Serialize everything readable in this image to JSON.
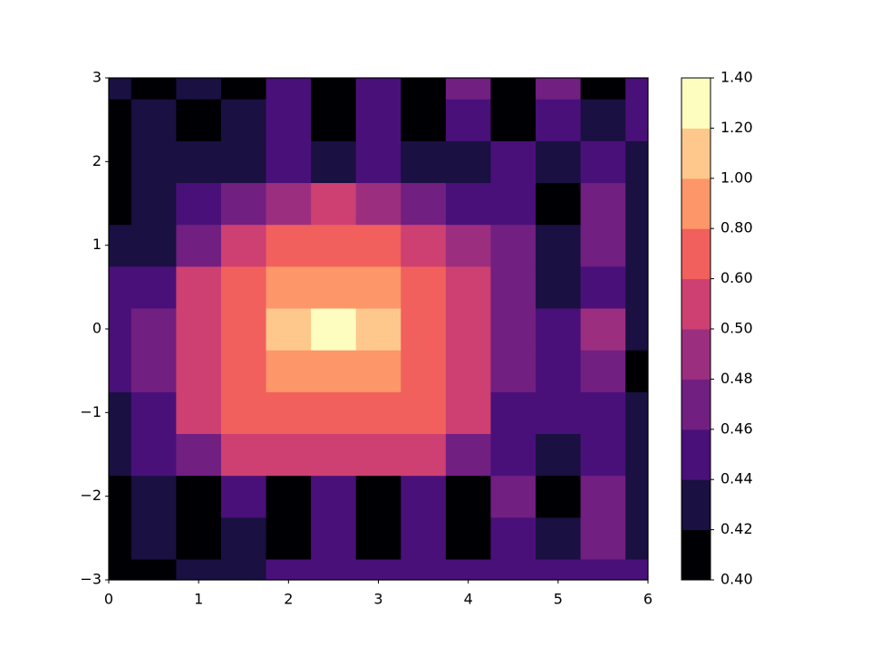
{
  "chart_data": {
    "type": "contourf",
    "x": [
      0,
      0.5,
      1,
      1.5,
      2,
      2.5,
      3,
      3.5,
      4,
      4.5,
      5,
      5.5,
      6
    ],
    "y": [
      -3,
      -2.5,
      -2,
      -1.5,
      -1,
      -0.5,
      0,
      0.5,
      1,
      1.5,
      2,
      2.5,
      3
    ],
    "z": [
      [
        0.41,
        0.41,
        0.43,
        0.42,
        0.44,
        0.44,
        0.45,
        0.44,
        0.45,
        0.44,
        0.45,
        0.45,
        0.45
      ],
      [
        0.41,
        0.43,
        0.41,
        0.43,
        0.41,
        0.44,
        0.41,
        0.44,
        0.41,
        0.45,
        0.43,
        0.46,
        0.43
      ],
      [
        0.41,
        0.43,
        0.41,
        0.44,
        0.41,
        0.45,
        0.41,
        0.45,
        0.41,
        0.46,
        0.41,
        0.47,
        0.43
      ],
      [
        0.42,
        0.44,
        0.46,
        0.5,
        0.55,
        0.58,
        0.55,
        0.5,
        0.47,
        0.45,
        0.43,
        0.45,
        0.43
      ],
      [
        0.43,
        0.45,
        0.5,
        0.62,
        0.7,
        0.72,
        0.7,
        0.62,
        0.52,
        0.45,
        0.44,
        0.45,
        0.43
      ],
      [
        0.44,
        0.46,
        0.55,
        0.68,
        0.9,
        0.95,
        0.9,
        0.68,
        0.55,
        0.46,
        0.44,
        0.46,
        0.41
      ],
      [
        0.45,
        0.47,
        0.55,
        0.7,
        1.1,
        1.3,
        1.1,
        0.7,
        0.55,
        0.47,
        0.45,
        0.48,
        0.42
      ],
      [
        0.44,
        0.45,
        0.52,
        0.65,
        0.85,
        0.9,
        0.85,
        0.65,
        0.53,
        0.47,
        0.43,
        0.44,
        0.43
      ],
      [
        0.42,
        0.43,
        0.46,
        0.52,
        0.62,
        0.65,
        0.62,
        0.55,
        0.48,
        0.46,
        0.42,
        0.46,
        0.43
      ],
      [
        0.41,
        0.43,
        0.44,
        0.47,
        0.49,
        0.55,
        0.49,
        0.47,
        0.44,
        0.45,
        0.41,
        0.47,
        0.43
      ],
      [
        0.41,
        0.43,
        0.43,
        0.43,
        0.45,
        0.43,
        0.44,
        0.43,
        0.43,
        0.44,
        0.43,
        0.45,
        0.43
      ],
      [
        0.41,
        0.43,
        0.41,
        0.43,
        0.45,
        0.41,
        0.44,
        0.41,
        0.45,
        0.41,
        0.45,
        0.42,
        0.45
      ],
      [
        0.43,
        0.41,
        0.43,
        0.41,
        0.45,
        0.41,
        0.45,
        0.41,
        0.46,
        0.41,
        0.46,
        0.41,
        0.45
      ]
    ],
    "xlim": [
      0,
      6
    ],
    "ylim": [
      -3,
      3
    ],
    "xticks": [
      0,
      1,
      2,
      3,
      4,
      5,
      6
    ],
    "yticks": [
      {
        "value": -3,
        "label": "−3"
      },
      {
        "value": -2,
        "label": "−2"
      },
      {
        "value": -1,
        "label": "−1"
      },
      0,
      1,
      2,
      3
    ],
    "levels": [
      {
        "value": 0.4,
        "label": "0.40"
      },
      {
        "value": 0.42,
        "label": "0.42"
      },
      {
        "value": 0.44,
        "label": "0.44"
      },
      {
        "value": 0.46,
        "label": "0.46"
      },
      {
        "value": 0.48,
        "label": "0.48"
      },
      {
        "value": 0.5,
        "label": "0.50"
      },
      {
        "value": 0.6,
        "label": "0.60"
      },
      {
        "value": 0.8,
        "label": "0.80"
      },
      {
        "value": 1.0,
        "label": "1.00"
      },
      {
        "value": 1.2,
        "label": "1.20"
      },
      {
        "value": 1.4,
        "label": "1.40"
      }
    ],
    "colors": [
      "#000004",
      "#1a1042",
      "#4a1079",
      "#711f81",
      "#9c2e7f",
      "#cd4071",
      "#f1605d",
      "#fd9668",
      "#fec88c",
      "#fcfdbf"
    ]
  }
}
